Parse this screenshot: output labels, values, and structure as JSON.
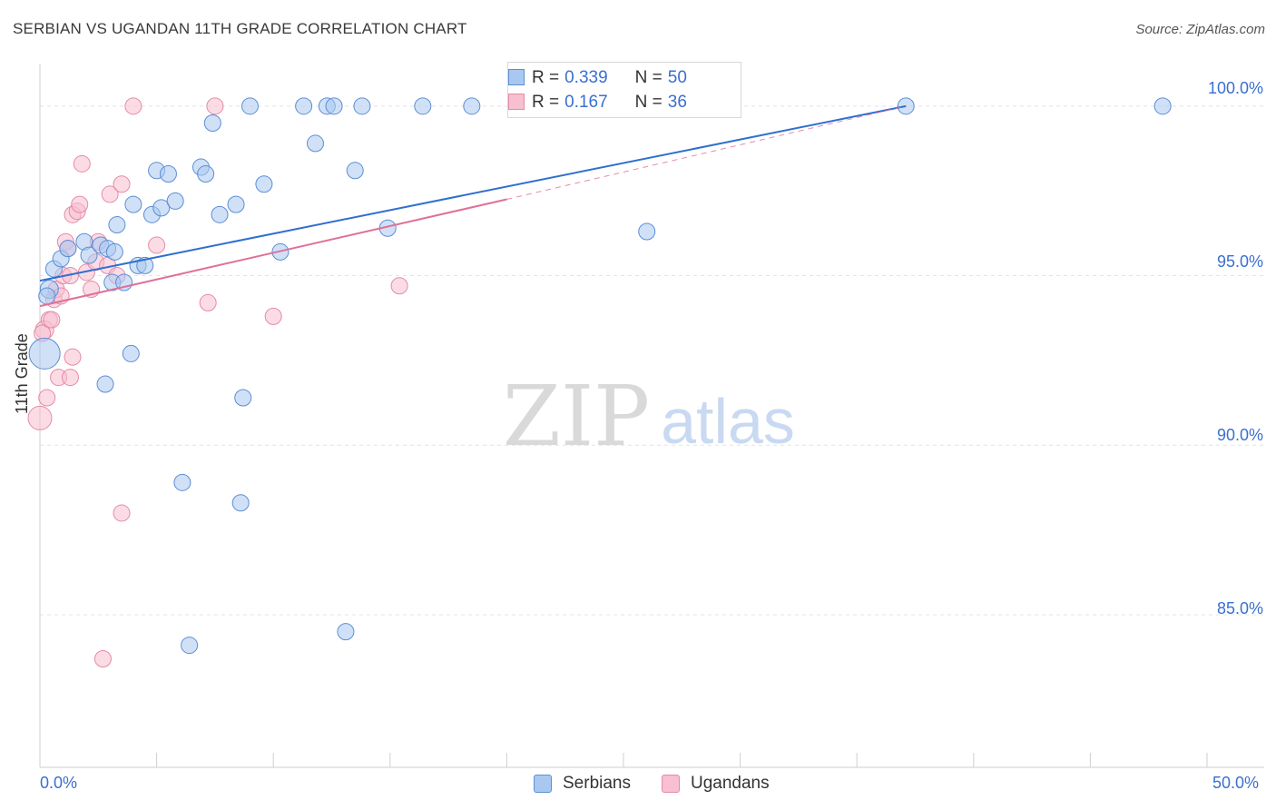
{
  "title": "SERBIAN VS UGANDAN 11TH GRADE CORRELATION CHART",
  "source": "Source: ZipAtlas.com",
  "watermark": {
    "zip": "ZIP",
    "atlas": "atlas"
  },
  "colors": {
    "serbians_fill": "#a9c8f0",
    "serbians_stroke": "#5b8ed6",
    "serbians_line": "#2f6fd0",
    "ugandans_fill": "#f7bfd0",
    "ugandans_stroke": "#e58aa8",
    "ugandans_line": "#e07098",
    "axis_text": "#3b6fd0",
    "grid": "#e4e4e4"
  },
  "legend_top": {
    "serbians": {
      "r_label": "R =",
      "r_value": "0.339",
      "n_label": "N =",
      "n_value": "50"
    },
    "ugandans": {
      "r_label": "R =",
      "r_value": "0.167",
      "n_label": "N =",
      "n_value": "36"
    }
  },
  "legend_bottom": {
    "serbians": "Serbians",
    "ugandans": "Ugandans"
  },
  "chart_data": {
    "type": "scatter",
    "title": "SERBIAN VS UGANDAN 11TH GRADE CORRELATION CHART",
    "xlabel": "",
    "ylabel": "11th Grade",
    "xlim": [
      0,
      50
    ],
    "ylim": [
      80.5,
      101.0
    ],
    "x_tick_labels": {
      "left": "0.0%",
      "right": "50.0%"
    },
    "y_ticks": [
      {
        "value": 100,
        "label": "100.0%"
      },
      {
        "value": 95,
        "label": "95.0%"
      },
      {
        "value": 90,
        "label": "90.0%"
      },
      {
        "value": 85,
        "label": "85.0%"
      }
    ],
    "series": [
      {
        "name": "Serbians",
        "r": 0.339,
        "n": 50,
        "trend": {
          "x0": 0,
          "y0": 94.85,
          "x1": 37.1,
          "y1": 100.0
        },
        "points": [
          [
            0.2,
            92.7,
            16
          ],
          [
            0.4,
            94.6,
            9
          ],
          [
            0.6,
            95.2,
            8
          ],
          [
            0.9,
            95.5,
            8
          ],
          [
            1.2,
            95.8,
            8
          ],
          [
            1.9,
            96.0,
            8
          ],
          [
            2.1,
            95.6,
            8
          ],
          [
            2.6,
            95.9,
            8
          ],
          [
            2.9,
            95.8,
            8
          ],
          [
            3.2,
            95.7,
            8
          ],
          [
            2.8,
            91.8,
            8
          ],
          [
            3.1,
            94.8,
            8
          ],
          [
            3.3,
            96.5,
            8
          ],
          [
            3.6,
            94.8,
            8
          ],
          [
            3.9,
            92.7,
            8
          ],
          [
            4.0,
            97.1,
            8
          ],
          [
            4.2,
            95.3,
            8
          ],
          [
            4.5,
            95.3,
            8
          ],
          [
            4.8,
            96.8,
            8
          ],
          [
            5.0,
            98.1,
            8
          ],
          [
            5.2,
            97.0,
            8
          ],
          [
            5.5,
            98.0,
            8
          ],
          [
            5.8,
            97.2,
            8
          ],
          [
            6.1,
            88.9,
            8
          ],
          [
            6.4,
            84.1,
            8
          ],
          [
            6.9,
            98.2,
            8
          ],
          [
            7.1,
            98.0,
            8
          ],
          [
            7.4,
            99.5,
            8
          ],
          [
            7.7,
            96.8,
            8
          ],
          [
            8.4,
            97.1,
            8
          ],
          [
            8.6,
            88.3,
            8
          ],
          [
            8.7,
            91.4,
            8
          ],
          [
            9.0,
            100.0,
            8
          ],
          [
            9.6,
            97.7,
            8
          ],
          [
            10.3,
            95.7,
            8
          ],
          [
            11.3,
            100.0,
            8
          ],
          [
            11.8,
            98.9,
            8
          ],
          [
            12.3,
            100.0,
            8
          ],
          [
            12.6,
            100.0,
            8
          ],
          [
            13.1,
            84.5,
            8
          ],
          [
            13.5,
            98.1,
            8
          ],
          [
            13.8,
            100.0,
            8
          ],
          [
            14.9,
            96.4,
            8
          ],
          [
            16.4,
            100.0,
            8
          ],
          [
            18.5,
            100.0,
            8
          ],
          [
            20.6,
            100.0,
            8
          ],
          [
            26.0,
            96.3,
            8
          ],
          [
            37.1,
            100.0,
            8
          ],
          [
            48.1,
            100.0,
            8
          ],
          [
            0.3,
            94.4,
            8
          ]
        ]
      },
      {
        "name": "Ugandans",
        "r": 0.167,
        "n": 36,
        "trend": {
          "x0": 0,
          "y0": 94.1,
          "x1": 20.0,
          "y1": 97.25,
          "dashed_to_x": 37.1,
          "dashed_to_y": 100.0
        },
        "points": [
          [
            0.0,
            90.8,
            12
          ],
          [
            0.2,
            93.4,
            9
          ],
          [
            0.3,
            91.4,
            8
          ],
          [
            0.4,
            93.7,
            8
          ],
          [
            0.5,
            93.7,
            8
          ],
          [
            0.6,
            94.3,
            8
          ],
          [
            0.7,
            94.6,
            8
          ],
          [
            0.8,
            92.0,
            8
          ],
          [
            0.9,
            94.4,
            8
          ],
          [
            1.0,
            95.0,
            8
          ],
          [
            1.1,
            96.0,
            8
          ],
          [
            1.2,
            95.8,
            8
          ],
          [
            1.3,
            95.0,
            8
          ],
          [
            1.3,
            92.0,
            8
          ],
          [
            1.4,
            92.6,
            8
          ],
          [
            1.4,
            96.8,
            8
          ],
          [
            1.6,
            96.9,
            8
          ],
          [
            1.7,
            97.1,
            8
          ],
          [
            1.8,
            98.3,
            8
          ],
          [
            2.0,
            95.1,
            8
          ],
          [
            2.2,
            94.6,
            8
          ],
          [
            2.5,
            96.0,
            8
          ],
          [
            2.4,
            95.4,
            8
          ],
          [
            2.7,
            83.7,
            8
          ],
          [
            2.9,
            95.3,
            8
          ],
          [
            3.0,
            97.4,
            8
          ],
          [
            3.3,
            95.0,
            8
          ],
          [
            3.5,
            97.7,
            8
          ],
          [
            3.5,
            88.0,
            8
          ],
          [
            4.0,
            100.0,
            8
          ],
          [
            5.0,
            95.9,
            8
          ],
          [
            7.2,
            94.2,
            8
          ],
          [
            7.5,
            100.0,
            8
          ],
          [
            10.0,
            93.8,
            8
          ],
          [
            15.4,
            94.7,
            8
          ],
          [
            0.1,
            93.3,
            8
          ]
        ]
      }
    ]
  }
}
